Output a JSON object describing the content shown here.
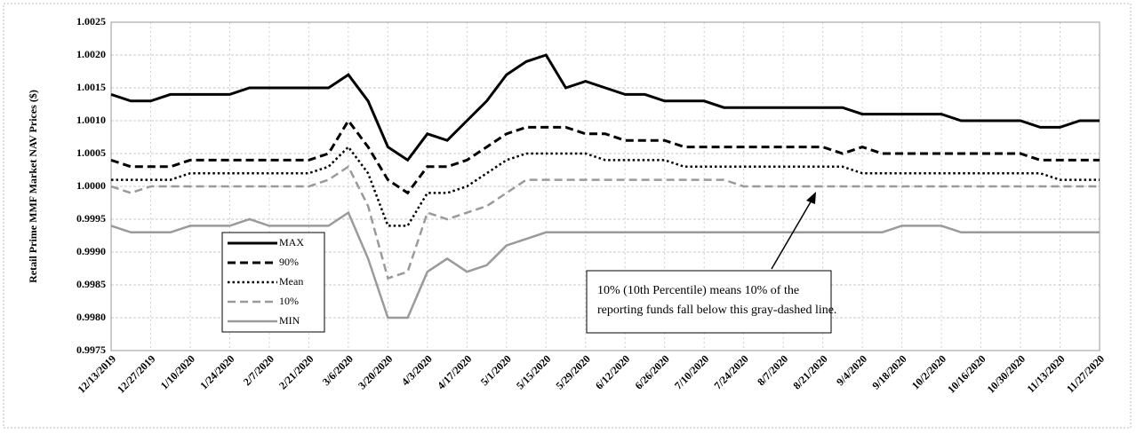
{
  "chart_data": {
    "type": "line",
    "y_axis_label": "Retail Prime MMF Market NAV Prices ($)",
    "annotation": [
      "10% (10th Percentile) means 10% of the",
      "reporting funds fall below this gray-dashed line."
    ],
    "categories": [
      "12/13/2019",
      null,
      "12/27/2019",
      null,
      "1/10/2020",
      null,
      "1/24/2020",
      null,
      "2/7/2020",
      null,
      "2/21/2020",
      null,
      "3/6/2020",
      null,
      "3/20/2020",
      null,
      "4/3/2020",
      null,
      "4/17/2020",
      null,
      "5/1/2020",
      null,
      "5/15/2020",
      null,
      "5/29/2020",
      null,
      "6/12/2020",
      null,
      "6/26/2020",
      null,
      "7/10/2020",
      null,
      "7/24/2020",
      null,
      "8/7/2020",
      null,
      "8/21/2020",
      null,
      "9/4/2020",
      null,
      "9/18/2020",
      null,
      "10/2/2020",
      null,
      "10/16/2020",
      null,
      "10/30/2020",
      null,
      "11/13/2020",
      null,
      "11/27/2020"
    ],
    "ylim": [
      0.9975,
      1.0025
    ],
    "yticks": [
      {
        "value": 0.9975,
        "label": "0.9975"
      },
      {
        "value": 0.998,
        "label": "0.9980"
      },
      {
        "value": 0.9985,
        "label": "0.9985"
      },
      {
        "value": 0.999,
        "label": "0.9990"
      },
      {
        "value": 0.9995,
        "label": "0.9995"
      },
      {
        "value": 1.0,
        "label": "1.0000"
      },
      {
        "value": 1.0005,
        "label": "1.0005"
      },
      {
        "value": 1.001,
        "label": "1.0010"
      },
      {
        "value": 1.0015,
        "label": "1.0015"
      },
      {
        "value": 1.002,
        "label": "1.0020"
      },
      {
        "value": 1.0025,
        "label": "1.0025"
      }
    ],
    "grid": true,
    "series": [
      {
        "name": "MAX",
        "color": "#000000",
        "dash": "solid",
        "values": [
          1.0014,
          1.0013,
          1.0013,
          1.0014,
          1.0014,
          1.0014,
          1.0014,
          1.0015,
          1.0015,
          1.0015,
          1.0015,
          1.0015,
          1.0017,
          1.0013,
          1.0006,
          1.0004,
          1.0008,
          1.0007,
          1.001,
          1.0013,
          1.0017,
          1.0019,
          1.002,
          1.0015,
          1.0016,
          1.0015,
          1.0014,
          1.0014,
          1.0013,
          1.0013,
          1.0013,
          1.0012,
          1.0012,
          1.0012,
          1.0012,
          1.0012,
          1.0012,
          1.0012,
          1.0011,
          1.0011,
          1.0011,
          1.0011,
          1.0011,
          1.001,
          1.001,
          1.001,
          1.001,
          1.0009,
          1.0009,
          1.001,
          1.001
        ]
      },
      {
        "name": "90%",
        "color": "#000000",
        "dash": "dashed",
        "values": [
          1.0004,
          1.0003,
          1.0003,
          1.0003,
          1.0004,
          1.0004,
          1.0004,
          1.0004,
          1.0004,
          1.0004,
          1.0004,
          1.0005,
          1.001,
          1.0006,
          1.0001,
          0.9999,
          1.0003,
          1.0003,
          1.0004,
          1.0006,
          1.0008,
          1.0009,
          1.0009,
          1.0009,
          1.0008,
          1.0008,
          1.0007,
          1.0007,
          1.0007,
          1.0006,
          1.0006,
          1.0006,
          1.0006,
          1.0006,
          1.0006,
          1.0006,
          1.0006,
          1.0005,
          1.0006,
          1.0005,
          1.0005,
          1.0005,
          1.0005,
          1.0005,
          1.0005,
          1.0005,
          1.0005,
          1.0004,
          1.0004,
          1.0004,
          1.0004
        ]
      },
      {
        "name": "Mean",
        "color": "#000000",
        "dash": "dotted",
        "values": [
          1.0001,
          1.0001,
          1.0001,
          1.0001,
          1.0002,
          1.0002,
          1.0002,
          1.0002,
          1.0002,
          1.0002,
          1.0002,
          1.0003,
          1.0006,
          1.0002,
          0.9994,
          0.9994,
          0.9999,
          0.9999,
          1.0,
          1.0002,
          1.0004,
          1.0005,
          1.0005,
          1.0005,
          1.0005,
          1.0004,
          1.0004,
          1.0004,
          1.0004,
          1.0003,
          1.0003,
          1.0003,
          1.0003,
          1.0003,
          1.0003,
          1.0003,
          1.0003,
          1.0003,
          1.0002,
          1.0002,
          1.0002,
          1.0002,
          1.0002,
          1.0002,
          1.0002,
          1.0002,
          1.0002,
          1.0002,
          1.0001,
          1.0001,
          1.0001
        ]
      },
      {
        "name": "10%",
        "color": "#9a9a9a",
        "dash": "dashed",
        "values": [
          1.0,
          0.9999,
          1.0,
          1.0,
          1.0,
          1.0,
          1.0,
          1.0,
          1.0,
          1.0,
          1.0,
          1.0001,
          1.0003,
          0.9997,
          0.9986,
          0.9987,
          0.9996,
          0.9995,
          0.9996,
          0.9997,
          0.9999,
          1.0001,
          1.0001,
          1.0001,
          1.0001,
          1.0001,
          1.0001,
          1.0001,
          1.0001,
          1.0001,
          1.0001,
          1.0001,
          1.0,
          1.0,
          1.0,
          1.0,
          1.0,
          1.0,
          1.0,
          1.0,
          1.0,
          1.0,
          1.0,
          1.0,
          1.0,
          1.0,
          1.0,
          1.0,
          1.0,
          1.0,
          1.0
        ]
      },
      {
        "name": "MIN",
        "color": "#9a9a9a",
        "dash": "solid",
        "values": [
          0.9994,
          0.9993,
          0.9993,
          0.9993,
          0.9994,
          0.9994,
          0.9994,
          0.9995,
          0.9994,
          0.9994,
          0.9994,
          0.9994,
          0.9996,
          0.9989,
          0.998,
          0.998,
          0.9987,
          0.9989,
          0.9987,
          0.9988,
          0.9991,
          0.9992,
          0.9993,
          0.9993,
          0.9993,
          0.9993,
          0.9993,
          0.9993,
          0.9993,
          0.9993,
          0.9993,
          0.9993,
          0.9993,
          0.9993,
          0.9993,
          0.9993,
          0.9993,
          0.9993,
          0.9993,
          0.9993,
          0.9994,
          0.9994,
          0.9994,
          0.9993,
          0.9993,
          0.9993,
          0.9993,
          0.9993,
          0.9993,
          0.9993,
          0.9993
        ]
      }
    ]
  }
}
